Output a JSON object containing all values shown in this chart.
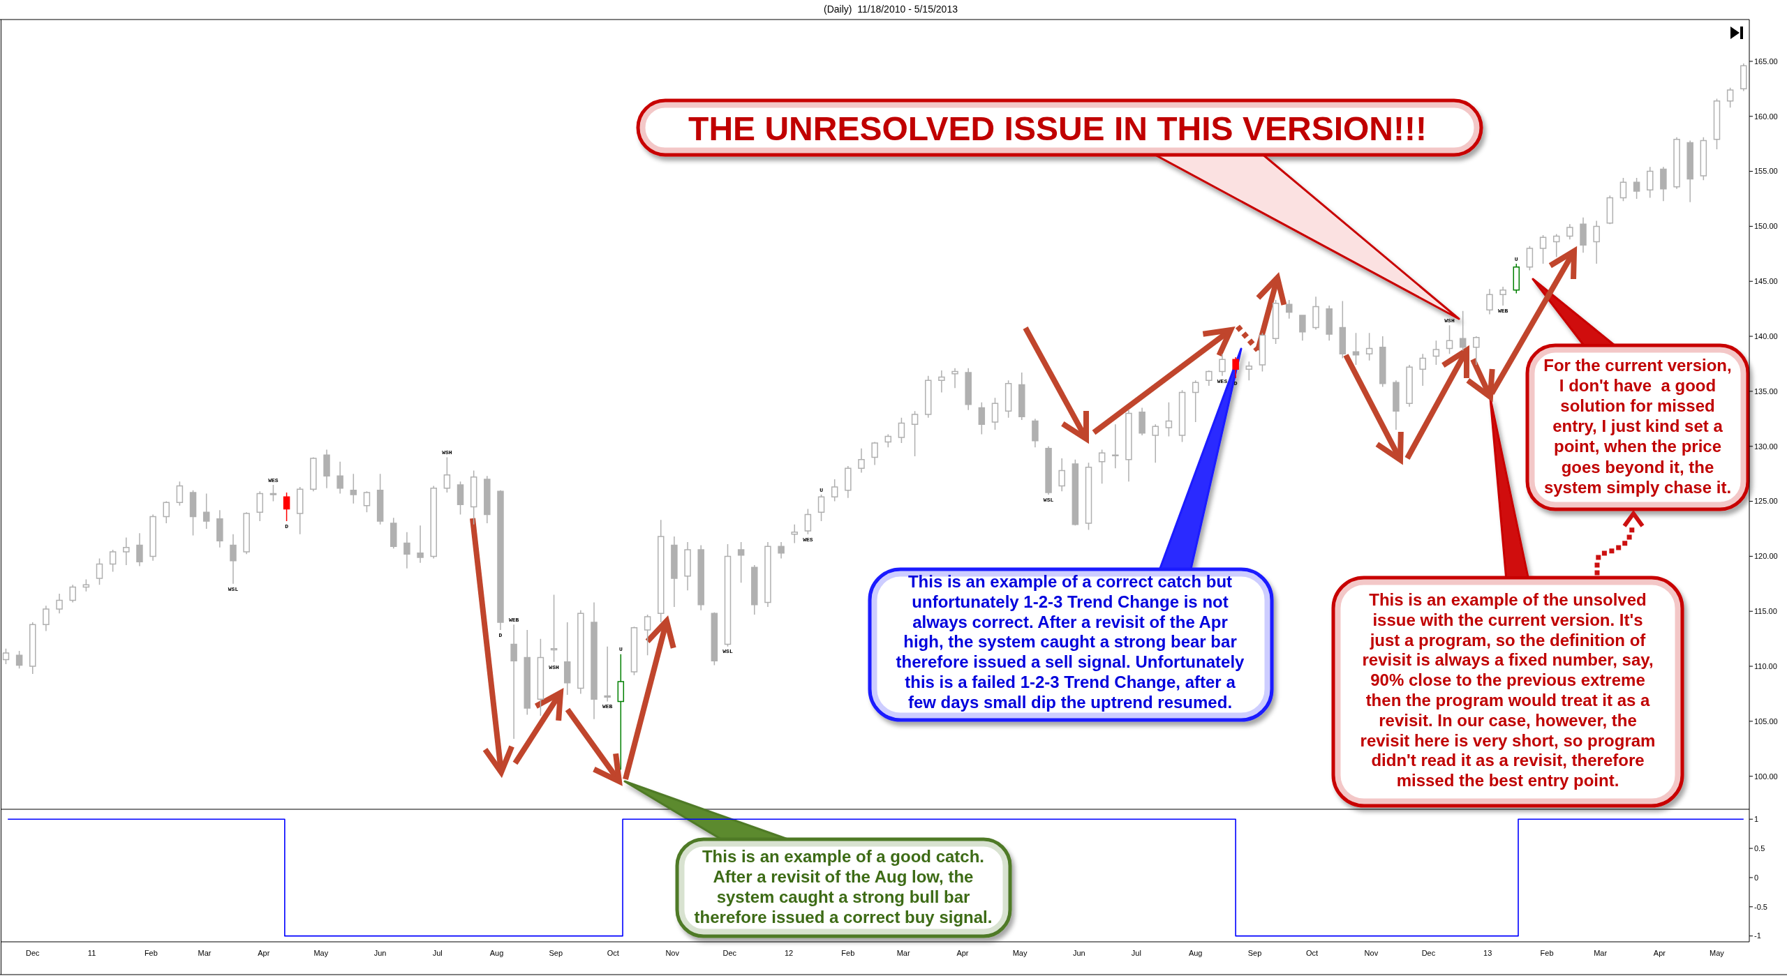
{
  "chart_data": [
    {
      "type": "candlestick",
      "title": "(Daily)  11/18/2010 - 5/15/2013",
      "x": [
        "2010-11-17",
        "2010-11-24",
        "2010-12-01",
        "2010-12-08",
        "2010-12-15",
        "2010-12-22",
        "2010-12-29",
        "2011-01-05",
        "2011-01-12",
        "2011-01-19",
        "2011-01-26",
        "2011-02-02",
        "2011-02-09",
        "2011-02-16",
        "2011-02-23",
        "2011-03-02",
        "2011-03-09",
        "2011-03-16",
        "2011-03-23",
        "2011-03-30",
        "2011-04-06",
        "2011-04-13",
        "2011-04-20",
        "2011-04-27",
        "2011-05-04",
        "2011-05-11",
        "2011-05-18",
        "2011-05-25",
        "2011-06-01",
        "2011-06-08",
        "2011-06-15",
        "2011-06-22",
        "2011-06-29",
        "2011-07-06",
        "2011-07-13",
        "2011-07-20",
        "2011-07-27",
        "2011-08-03",
        "2011-08-10",
        "2011-08-17",
        "2011-08-24",
        "2011-08-31",
        "2011-09-07",
        "2011-09-14",
        "2011-09-21",
        "2011-09-28",
        "2011-10-05",
        "2011-10-12",
        "2011-10-19",
        "2011-10-26",
        "2011-11-02",
        "2011-11-09",
        "2011-11-16",
        "2011-11-23",
        "2011-11-30",
        "2011-12-07",
        "2011-12-14",
        "2011-12-21",
        "2011-12-28",
        "2012-01-04",
        "2012-01-11",
        "2012-01-18",
        "2012-01-25",
        "2012-02-01",
        "2012-02-08",
        "2012-02-15",
        "2012-02-22",
        "2012-02-29",
        "2012-03-07",
        "2012-03-14",
        "2012-03-21",
        "2012-03-28",
        "2012-04-04",
        "2012-04-11",
        "2012-04-18",
        "2012-04-25",
        "2012-05-02",
        "2012-05-09",
        "2012-05-16",
        "2012-05-23",
        "2012-05-30",
        "2012-06-06",
        "2012-06-13",
        "2012-06-20",
        "2012-06-27",
        "2012-07-04",
        "2012-07-11",
        "2012-07-18",
        "2012-07-25",
        "2012-08-01",
        "2012-08-08",
        "2012-08-15",
        "2012-08-22",
        "2012-08-29",
        "2012-09-05",
        "2012-09-12",
        "2012-09-19",
        "2012-09-26",
        "2012-10-03",
        "2012-10-10",
        "2012-10-17",
        "2012-10-24",
        "2012-10-31",
        "2012-11-07",
        "2012-11-14",
        "2012-11-21",
        "2012-11-28",
        "2012-12-05",
        "2012-12-12",
        "2012-12-19",
        "2012-12-26",
        "2013-01-02",
        "2013-01-09",
        "2013-01-16",
        "2013-01-23",
        "2013-01-30",
        "2013-02-06",
        "2013-02-13",
        "2013-02-20",
        "2013-02-27",
        "2013-03-06",
        "2013-03-13",
        "2013-03-20",
        "2013-03-27",
        "2013-04-03",
        "2013-04-10",
        "2013-04-17",
        "2013-04-24",
        "2013-05-01",
        "2013-05-08",
        "2013-05-15"
      ],
      "ohlc": [
        [
          110.6,
          111.6,
          110.2,
          111.2
        ],
        [
          111.0,
          111.4,
          109.8,
          110.1
        ],
        [
          110.0,
          114.0,
          109.3,
          113.8
        ],
        [
          113.8,
          115.5,
          113.2,
          115.2
        ],
        [
          115.2,
          116.6,
          114.8,
          116.0
        ],
        [
          116.0,
          117.4,
          115.8,
          117.2
        ],
        [
          117.2,
          117.9,
          116.8,
          117.4
        ],
        [
          118.0,
          119.8,
          117.4,
          119.3
        ],
        [
          119.3,
          120.6,
          118.6,
          120.4
        ],
        [
          120.4,
          121.7,
          119.2,
          120.8
        ],
        [
          121.0,
          122.1,
          119.1,
          119.5
        ],
        [
          120.0,
          123.8,
          119.6,
          123.6
        ],
        [
          123.6,
          125.0,
          123.0,
          124.9
        ],
        [
          124.9,
          126.8,
          124.6,
          126.4
        ],
        [
          125.8,
          126.0,
          121.9,
          123.6
        ],
        [
          124.0,
          125.7,
          122.5,
          123.2
        ],
        [
          123.4,
          124.2,
          120.8,
          121.4
        ],
        [
          121.0,
          122.0,
          117.5,
          119.6
        ],
        [
          120.4,
          124.0,
          120.2,
          123.9
        ],
        [
          124.0,
          125.9,
          123.2,
          125.7
        ],
        [
          125.7,
          126.5,
          125.0,
          125.6
        ],
        [
          125.4,
          125.8,
          123.2,
          124.3
        ],
        [
          123.9,
          126.3,
          122.0,
          126.1
        ],
        [
          126.1,
          129.0,
          125.9,
          128.9
        ],
        [
          129.2,
          129.7,
          126.2,
          127.3
        ],
        [
          127.3,
          128.6,
          125.7,
          126.2
        ],
        [
          126.0,
          127.5,
          124.8,
          125.6
        ],
        [
          124.6,
          125.9,
          124.0,
          125.8
        ],
        [
          126.0,
          127.5,
          122.9,
          123.2
        ],
        [
          123.0,
          123.5,
          120.7,
          120.9
        ],
        [
          121.2,
          122.2,
          118.9,
          120.2
        ],
        [
          120.3,
          122.8,
          119.4,
          119.9
        ],
        [
          120.0,
          126.4,
          119.8,
          126.2
        ],
        [
          126.2,
          129.0,
          125.8,
          127.4
        ],
        [
          126.5,
          126.8,
          123.8,
          124.7
        ],
        [
          124.5,
          127.8,
          122.9,
          127.2
        ],
        [
          127.0,
          127.3,
          123.0,
          123.8
        ],
        [
          125.9,
          126.0,
          113.3,
          114.0
        ],
        [
          112.0,
          113.8,
          103.4,
          110.5
        ],
        [
          110.8,
          113.3,
          105.6,
          106.2
        ],
        [
          107.0,
          112.5,
          105.5,
          110.8
        ],
        [
          111.5,
          116.5,
          110.4,
          111.6
        ],
        [
          110.4,
          114.0,
          107.4,
          108.5
        ],
        [
          108.0,
          115.1,
          107.5,
          114.8
        ],
        [
          114.0,
          115.8,
          105.2,
          107.0
        ],
        [
          107.3,
          111.8,
          106.8,
          107.2
        ],
        [
          106.8,
          111.1,
          100.6,
          108.6
        ],
        [
          109.5,
          113.6,
          109.2,
          113.5
        ],
        [
          113.3,
          114.7,
          111.0,
          114.5
        ],
        [
          114.8,
          123.3,
          114.0,
          121.8
        ],
        [
          121.0,
          121.8,
          115.4,
          118.0
        ],
        [
          118.2,
          121.3,
          116.9,
          120.6
        ],
        [
          120.6,
          121.0,
          115.1,
          115.6
        ],
        [
          114.8,
          114.9,
          110.1,
          110.5
        ],
        [
          112.0,
          121.1,
          111.8,
          120.0
        ],
        [
          120.6,
          121.3,
          117.6,
          120.1
        ],
        [
          119.0,
          119.2,
          114.7,
          115.6
        ],
        [
          115.8,
          121.3,
          115.4,
          120.9
        ],
        [
          120.9,
          121.3,
          119.8,
          120.3
        ],
        [
          122.0,
          122.9,
          121.2,
          122.2
        ],
        [
          122.3,
          124.3,
          122.0,
          123.8
        ],
        [
          124.0,
          125.6,
          123.2,
          125.4
        ],
        [
          125.4,
          127.0,
          125.0,
          126.3
        ],
        [
          126.0,
          128.2,
          125.3,
          128.0
        ],
        [
          128.0,
          129.8,
          127.6,
          128.8
        ],
        [
          129.0,
          130.4,
          128.3,
          130.3
        ],
        [
          130.4,
          131.1,
          129.9,
          130.9
        ],
        [
          130.8,
          132.6,
          130.3,
          132.1
        ],
        [
          132.0,
          133.2,
          129.1,
          132.9
        ],
        [
          132.9,
          136.4,
          132.6,
          136.0
        ],
        [
          136.0,
          136.9,
          134.9,
          136.3
        ],
        [
          136.6,
          137.1,
          135.3,
          136.8
        ],
        [
          136.7,
          137.1,
          133.3,
          133.8
        ],
        [
          133.5,
          134.0,
          131.1,
          132.0
        ],
        [
          132.2,
          134.4,
          131.5,
          133.9
        ],
        [
          133.2,
          136.0,
          132.6,
          135.7
        ],
        [
          135.6,
          136.7,
          132.4,
          132.7
        ],
        [
          132.3,
          132.5,
          129.9,
          130.5
        ],
        [
          129.8,
          130.0,
          125.6,
          125.8
        ],
        [
          126.4,
          128.9,
          125.9,
          127.8
        ],
        [
          128.4,
          128.8,
          122.8,
          122.9
        ],
        [
          123.0,
          128.5,
          122.4,
          128.1
        ],
        [
          128.6,
          129.7,
          126.6,
          129.4
        ],
        [
          129.2,
          132.0,
          128.0,
          129.2
        ],
        [
          128.8,
          133.3,
          126.8,
          133.0
        ],
        [
          133.1,
          133.5,
          131.0,
          131.2
        ],
        [
          131.0,
          132.0,
          128.5,
          131.8
        ],
        [
          131.7,
          134.0,
          130.9,
          132.3
        ],
        [
          131.0,
          135.1,
          130.4,
          134.9
        ],
        [
          134.9,
          136.0,
          132.2,
          135.8
        ],
        [
          136.0,
          136.9,
          135.5,
          136.8
        ],
        [
          136.8,
          138.4,
          136.4,
          137.9
        ],
        [
          137.9,
          138.1,
          136.2,
          137.0
        ],
        [
          137.0,
          137.7,
          136.0,
          137.3
        ],
        [
          137.4,
          140.3,
          136.8,
          140.1
        ],
        [
          139.8,
          143.3,
          139.3,
          143.0
        ],
        [
          142.9,
          143.3,
          141.6,
          142.2
        ],
        [
          141.9,
          141.9,
          139.6,
          140.4
        ],
        [
          140.8,
          143.6,
          140.6,
          142.7
        ],
        [
          142.5,
          142.8,
          139.6,
          140.2
        ],
        [
          140.8,
          143.2,
          138.0,
          138.4
        ],
        [
          138.6,
          140.3,
          137.4,
          138.3
        ],
        [
          138.4,
          140.3,
          137.8,
          138.9
        ],
        [
          139.0,
          140.0,
          135.4,
          135.7
        ],
        [
          135.8,
          136.0,
          131.5,
          133.2
        ],
        [
          133.9,
          137.4,
          133.6,
          137.2
        ],
        [
          137.0,
          138.4,
          135.5,
          138.0
        ],
        [
          138.2,
          139.6,
          137.4,
          138.8
        ],
        [
          138.9,
          141.0,
          138.4,
          139.6
        ],
        [
          139.8,
          142.3,
          138.7,
          139.0
        ],
        [
          139.0,
          140.0,
          137.4,
          139.9
        ],
        [
          142.4,
          144.3,
          142.0,
          143.8
        ],
        [
          143.8,
          144.5,
          142.8,
          144.2
        ],
        [
          144.2,
          146.6,
          143.9,
          146.3
        ],
        [
          146.3,
          148.2,
          146.0,
          148.0
        ],
        [
          148.0,
          149.2,
          146.6,
          149.0
        ],
        [
          148.6,
          149.3,
          147.2,
          149.1
        ],
        [
          149.1,
          150.2,
          148.8,
          149.9
        ],
        [
          150.2,
          150.8,
          147.6,
          148.3
        ],
        [
          148.6,
          150.5,
          146.6,
          150.0
        ],
        [
          150.3,
          152.8,
          150.2,
          152.6
        ],
        [
          152.6,
          154.4,
          152.3,
          154.0
        ],
        [
          154.0,
          154.4,
          152.5,
          153.2
        ],
        [
          153.3,
          155.4,
          152.6,
          155.0
        ],
        [
          155.2,
          155.4,
          152.3,
          153.4
        ],
        [
          153.6,
          158.1,
          153.4,
          157.9
        ],
        [
          157.6,
          157.8,
          152.2,
          154.3
        ],
        [
          154.6,
          158.1,
          154.2,
          157.8
        ],
        [
          157.9,
          161.6,
          157.0,
          161.4
        ],
        [
          161.4,
          162.6,
          160.8,
          162.4
        ],
        [
          162.5,
          164.8,
          162.3,
          164.6
        ]
      ],
      "colors": [
        "#b0b0b0",
        "#b0b0b0",
        "#b0b0b0",
        "#b0b0b0",
        "#b0b0b0",
        "#b0b0b0",
        "#b0b0b0",
        "#b0b0b0",
        "#b0b0b0",
        "#b0b0b0",
        "#b0b0b0",
        "#b0b0b0",
        "#b0b0b0",
        "#b0b0b0",
        "#b0b0b0",
        "#b0b0b0",
        "#b0b0b0",
        "#b0b0b0",
        "#b0b0b0",
        "#b0b0b0",
        "#b0b0b0",
        "#ff0000",
        "#b0b0b0",
        "#b0b0b0",
        "#b0b0b0",
        "#b0b0b0",
        "#b0b0b0",
        "#b0b0b0",
        "#b0b0b0",
        "#b0b0b0",
        "#b0b0b0",
        "#b0b0b0",
        "#b0b0b0",
        "#b0b0b0",
        "#b0b0b0",
        "#b0b0b0",
        "#b0b0b0",
        "#b0b0b0",
        "#b0b0b0",
        "#b0b0b0",
        "#b0b0b0",
        "#b0b0b0",
        "#b0b0b0",
        "#b0b0b0",
        "#b0b0b0",
        "#b0b0b0",
        "#008000",
        "#b0b0b0",
        "#b0b0b0",
        "#b0b0b0",
        "#b0b0b0",
        "#b0b0b0",
        "#b0b0b0",
        "#b0b0b0",
        "#b0b0b0",
        "#b0b0b0",
        "#b0b0b0",
        "#b0b0b0",
        "#b0b0b0",
        "#b0b0b0",
        "#b0b0b0",
        "#b0b0b0",
        "#b0b0b0",
        "#b0b0b0",
        "#b0b0b0",
        "#b0b0b0",
        "#b0b0b0",
        "#b0b0b0",
        "#b0b0b0",
        "#b0b0b0",
        "#b0b0b0",
        "#b0b0b0",
        "#b0b0b0",
        "#b0b0b0",
        "#b0b0b0",
        "#b0b0b0",
        "#b0b0b0",
        "#b0b0b0",
        "#b0b0b0",
        "#b0b0b0",
        "#b0b0b0",
        "#b0b0b0",
        "#b0b0b0",
        "#b0b0b0",
        "#b0b0b0",
        "#b0b0b0",
        "#b0b0b0",
        "#b0b0b0",
        "#b0b0b0",
        "#b0b0b0",
        "#b0b0b0",
        "#b0b0b0",
        "#ff0000",
        "#b0b0b0",
        "#b0b0b0",
        "#b0b0b0",
        "#b0b0b0",
        "#b0b0b0",
        "#b0b0b0",
        "#b0b0b0",
        "#b0b0b0",
        "#b0b0b0",
        "#b0b0b0",
        "#b0b0b0",
        "#b0b0b0",
        "#b0b0b0",
        "#b0b0b0",
        "#b0b0b0",
        "#b0b0b0",
        "#b0b0b0",
        "#b0b0b0",
        "#b0b0b0",
        "#b0b0b0",
        "#008000",
        "#b0b0b0",
        "#b0b0b0",
        "#b0b0b0",
        "#b0b0b0",
        "#b0b0b0",
        "#b0b0b0",
        "#b0b0b0",
        "#b0b0b0",
        "#b0b0b0",
        "#b0b0b0",
        "#b0b0b0",
        "#b0b0b0",
        "#b0b0b0",
        "#b0b0b0",
        "#b0b0b0",
        "#b0b0b0",
        "#b0b0b0"
      ],
      "xlim": [
        "2010-11-15",
        "2013-05-18"
      ],
      "ylim": [
        97,
        168.8
      ],
      "yticks": [
        {
          "value": 100,
          "label": "100.00"
        },
        {
          "value": 105,
          "label": "105.00"
        },
        {
          "value": 110,
          "label": "110.00"
        },
        {
          "value": 115,
          "label": "115.00"
        },
        {
          "value": 120,
          "label": "120.00"
        },
        {
          "value": 125,
          "label": "125.00"
        },
        {
          "value": 130,
          "label": "130.00"
        },
        {
          "value": 135,
          "label": "135.00"
        },
        {
          "value": 140,
          "label": "140.00"
        },
        {
          "value": 145,
          "label": "145.00"
        },
        {
          "value": 150,
          "label": "150.00"
        },
        {
          "value": 155,
          "label": "155.00"
        },
        {
          "value": 160,
          "label": "160.00"
        },
        {
          "value": 165,
          "label": "165.00"
        }
      ],
      "tick_labels": "y",
      "annotations": [
        "THE UNRESOLVED ISSUE IN THIS VERSION!!!",
        "This is an example of a correct catch but\nunfortunately 1-2-3 Trend Change is not\nalways correct. After a revisit of the Apr\nhigh, the system caught a strong bear bar\ntherefore issued a sell signal. Unfortunately\nthis is a failed 1-2-3 Trend Change, after a\nfew days small dip the uptrend resumed.",
        "This is an example of a good catch.\nAfter a revisit of the Aug low, the\nsystem caught a strong bull bar\ntherefore issued a correct buy signal.",
        "This is an example of the unsolved\nissue with the current version. It's\njust a program, so the definition of\nrevisit is always a fixed number, say,\n90% close to the previous extreme\nthen the program would treat it as a\nrevisit. In our case, however, the\nrevisit here is very short, so program\ndidn't read it as a revisit, therefore\nmissed the best entry point.",
        "For the current version,\nI don't have  a good\nsolution for missed\nentry, I just kind set a\npoint, when the price\ngoes beyond it, the\nsystem simply chase it.",
        {
          "text": "WSL",
          "x": "2011-03-16",
          "y": 117.5
        },
        {
          "text": "WES",
          "x": "2011-04-06",
          "y": 126.5
        },
        {
          "text": "D",
          "x": "2011-04-13",
          "y": 123.2
        },
        {
          "text": "WSH",
          "x": "2011-07-06",
          "y": 129.0
        },
        {
          "text": "D",
          "x": "2011-08-03",
          "y": 113.3
        },
        {
          "text": "WEB",
          "x": "2011-08-10",
          "y": 113.8
        },
        {
          "text": "WSH",
          "x": "2011-08-31",
          "y": 110.4
        },
        {
          "text": "WEB",
          "x": "2011-09-28",
          "y": 106.8
        },
        {
          "text": "U",
          "x": "2011-10-05",
          "y": 111.1
        },
        {
          "text": "WSL",
          "x": "2011-11-30",
          "y": 111.8
        },
        {
          "text": "WES",
          "x": "2012-01-11",
          "y": 122.0
        },
        {
          "text": "U",
          "x": "2012-01-18",
          "y": 125.6
        },
        {
          "text": "WSL",
          "x": "2012-05-16",
          "y": 125.6
        },
        {
          "text": "WES",
          "x": "2012-08-15",
          "y": 136.4
        },
        {
          "text": "D",
          "x": "2012-08-22",
          "y": 136.2
        },
        {
          "text": "WSH",
          "x": "2012-12-12",
          "y": 141.0
        },
        {
          "text": "WEB",
          "x": "2013-01-09",
          "y": 142.8
        },
        {
          "text": "U",
          "x": "2013-01-16",
          "y": 146.6
        }
      ]
    },
    {
      "type": "step",
      "x": [
        "2010-11-18",
        "2011-04-12",
        "2011-10-06",
        "2012-08-22",
        "2013-01-17",
        "2013-05-15"
      ],
      "values": [
        1,
        -1,
        1,
        -1,
        1,
        1
      ],
      "color": "#0000ff",
      "xlim": [
        "2010-11-15",
        "2013-05-18"
      ],
      "ylim": [
        -1.1,
        1.17
      ],
      "xticks": [
        {
          "value": "2010-12-01",
          "label": "Dec"
        },
        {
          "value": "2011-01-01",
          "label": "11"
        },
        {
          "value": "2011-02-01",
          "label": "Feb"
        },
        {
          "value": "2011-03-01",
          "label": "Mar"
        },
        {
          "value": "2011-04-01",
          "label": "Apr"
        },
        {
          "value": "2011-05-01",
          "label": "May"
        },
        {
          "value": "2011-06-01",
          "label": "Jun"
        },
        {
          "value": "2011-07-01",
          "label": "Jul"
        },
        {
          "value": "2011-08-01",
          "label": "Aug"
        },
        {
          "value": "2011-09-01",
          "label": "Sep"
        },
        {
          "value": "2011-10-01",
          "label": "Oct"
        },
        {
          "value": "2011-11-01",
          "label": "Nov"
        },
        {
          "value": "2011-12-01",
          "label": "Dec"
        },
        {
          "value": "2012-01-01",
          "label": "12"
        },
        {
          "value": "2012-02-01",
          "label": "Feb"
        },
        {
          "value": "2012-03-01",
          "label": "Mar"
        },
        {
          "value": "2012-04-01",
          "label": "Apr"
        },
        {
          "value": "2012-05-01",
          "label": "May"
        },
        {
          "value": "2012-06-01",
          "label": "Jun"
        },
        {
          "value": "2012-07-01",
          "label": "Jul"
        },
        {
          "value": "2012-08-01",
          "label": "Aug"
        },
        {
          "value": "2012-09-01",
          "label": "Sep"
        },
        {
          "value": "2012-10-01",
          "label": "Oct"
        },
        {
          "value": "2012-11-01",
          "label": "Nov"
        },
        {
          "value": "2012-12-01",
          "label": "Dec"
        },
        {
          "value": "2013-01-01",
          "label": "13"
        },
        {
          "value": "2013-02-01",
          "label": "Feb"
        },
        {
          "value": "2013-03-01",
          "label": "Mar"
        },
        {
          "value": "2013-04-01",
          "label": "Apr"
        },
        {
          "value": "2013-05-01",
          "label": "May"
        }
      ],
      "yticks": [
        1,
        0.5,
        0,
        -0.5,
        -1
      ]
    }
  ]
}
